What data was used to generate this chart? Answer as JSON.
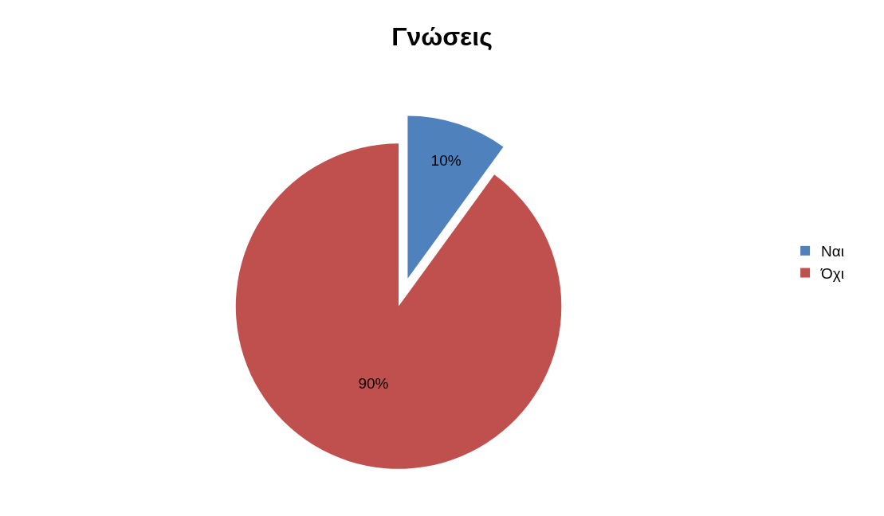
{
  "chart_data": {
    "type": "pie",
    "title": "Γνώσεις",
    "categories": [
      "Ναι",
      "Όχι"
    ],
    "values": [
      10,
      90
    ],
    "colors": [
      "#4f81bd",
      "#c0504d"
    ],
    "value_labels": [
      "10%",
      "90%"
    ],
    "legend": "right"
  }
}
